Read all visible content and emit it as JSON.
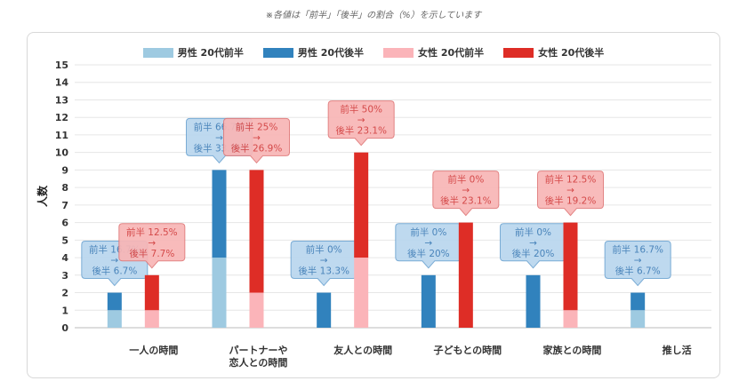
{
  "note": "※各値は「前半」「後半」の割合（%）を示しています",
  "chart_data": {
    "type": "bar",
    "stacked": true,
    "ylabel": "人数",
    "ylim": [
      0,
      15
    ],
    "yticks": [
      0,
      1,
      2,
      3,
      4,
      5,
      6,
      7,
      8,
      9,
      10,
      11,
      12,
      13,
      14,
      15
    ],
    "grid": true,
    "legend_position": "top",
    "categories": [
      [
        "一人の時間"
      ],
      [
        "パートナーや",
        "恋人との時間"
      ],
      [
        "友人との時間"
      ],
      [
        "子どもとの時間"
      ],
      [
        "家族との時間"
      ],
      [
        "推し活"
      ]
    ],
    "series": [
      {
        "name": "男性 20代前半",
        "stack": "male",
        "color": "#9ecae1",
        "values": [
          1,
          4,
          0,
          0,
          0,
          1
        ]
      },
      {
        "name": "男性 20代後半",
        "stack": "male",
        "color": "#3182bd",
        "values": [
          1,
          5,
          2,
          3,
          3,
          1
        ]
      },
      {
        "name": "女性 20代前半",
        "stack": "female",
        "color": "#fbb4b9",
        "values": [
          1,
          2,
          4,
          0,
          1,
          0
        ]
      },
      {
        "name": "女性 20代後半",
        "stack": "female",
        "color": "#de2d26",
        "values": [
          2,
          7,
          6,
          6,
          5,
          0
        ]
      }
    ],
    "annotations": {
      "male": [
        [
          "前半 16.7%",
          "→",
          "後半 6.7%"
        ],
        [
          "前半 66.7%",
          "→",
          "後半 33.3%"
        ],
        [
          "前半 0%",
          "→",
          "後半 13.3%"
        ],
        [
          "前半 0%",
          "→",
          "後半 20%"
        ],
        [
          "前半 0%",
          "→",
          "後半 20%"
        ],
        [
          "前半 16.7%",
          "→",
          "後半 6.7%"
        ]
      ],
      "female": [
        [
          "前半 12.5%",
          "→",
          "後半 7.7%"
        ],
        [
          "前半 25%",
          "→",
          "後半 26.9%"
        ],
        [
          "前半 50%",
          "→",
          "後半 23.1%"
        ],
        [
          "前半 0%",
          "→",
          "後半 23.1%"
        ],
        [
          "前半 12.5%",
          "→",
          "後半 19.2%"
        ],
        null
      ]
    }
  }
}
